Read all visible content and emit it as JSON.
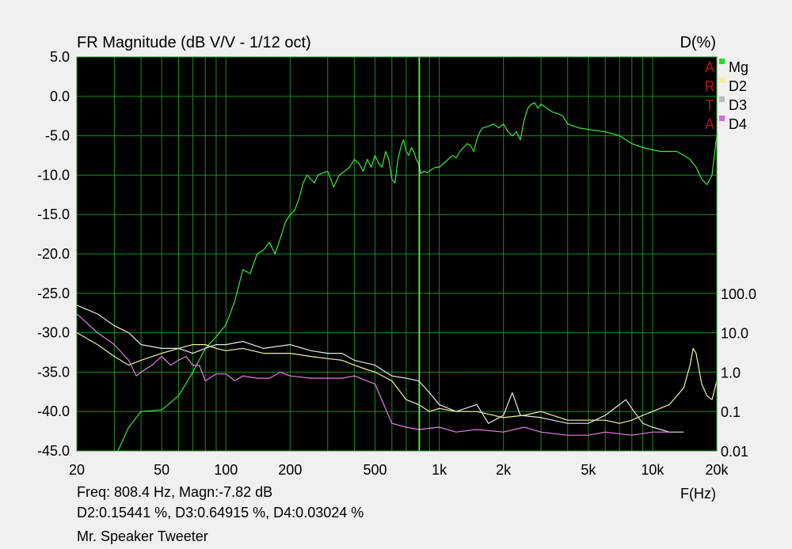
{
  "chart_data": {
    "type": "line",
    "title": "FR Magnitude (dB V/V - 1/12 oct)",
    "right_axis_label": "D(%)",
    "xlabel": "F(Hz)",
    "x_scale": "log",
    "xlim": [
      20,
      20000
    ],
    "x_ticks": [
      {
        "v": 20,
        "label": "20"
      },
      {
        "v": 50,
        "label": "50"
      },
      {
        "v": 100,
        "label": "100"
      },
      {
        "v": 200,
        "label": "200"
      },
      {
        "v": 500,
        "label": "500"
      },
      {
        "v": 1000,
        "label": "1k"
      },
      {
        "v": 2000,
        "label": "2k"
      },
      {
        "v": 5000,
        "label": "5k"
      },
      {
        "v": 10000,
        "label": "10k"
      },
      {
        "v": 20000,
        "label": "20k"
      }
    ],
    "ylim": [
      -45,
      5
    ],
    "y_ticks": [
      {
        "v": 5,
        "label": "5.0"
      },
      {
        "v": 0,
        "label": "0.0"
      },
      {
        "v": -5,
        "label": "-5.0"
      },
      {
        "v": -10,
        "label": "-10.0"
      },
      {
        "v": -15,
        "label": "-15.0"
      },
      {
        "v": -20,
        "label": "-20.0"
      },
      {
        "v": -25,
        "label": "-25.0"
      },
      {
        "v": -30,
        "label": "-30.0"
      },
      {
        "v": -35,
        "label": "-35.0"
      },
      {
        "v": -40,
        "label": "-40.0"
      },
      {
        "v": -45,
        "label": "-45.0"
      }
    ],
    "y2_scale": "log",
    "y2lim": [
      0.01,
      100
    ],
    "y2_ticks": [
      {
        "v": 100,
        "label": "100.0"
      },
      {
        "v": 10,
        "label": "10.0"
      },
      {
        "v": 1,
        "label": "1.0"
      },
      {
        "v": 0.1,
        "label": "0.1"
      },
      {
        "v": 0.01,
        "label": "0.01"
      }
    ],
    "grid": true,
    "background": "#000000",
    "grid_color": "#1f8a1f",
    "legend_position": "top-right",
    "legend_logo": "ARTA",
    "cursor_freq_hz": 808.4,
    "series": [
      {
        "name": "Mg",
        "axis": "left",
        "color": "#3ee83e",
        "points": [
          [
            20,
            -60
          ],
          [
            30,
            -46
          ],
          [
            35,
            -42
          ],
          [
            40,
            -40
          ],
          [
            50,
            -39.8
          ],
          [
            60,
            -38
          ],
          [
            70,
            -35
          ],
          [
            80,
            -32
          ],
          [
            90,
            -30.5
          ],
          [
            100,
            -29
          ],
          [
            110,
            -26
          ],
          [
            120,
            -22
          ],
          [
            130,
            -22.5
          ],
          [
            140,
            -20
          ],
          [
            150,
            -19.5
          ],
          [
            160,
            -18.5
          ],
          [
            170,
            -20
          ],
          [
            180,
            -18
          ],
          [
            190,
            -16
          ],
          [
            200,
            -15
          ],
          [
            210,
            -14.5
          ],
          [
            220,
            -13
          ],
          [
            230,
            -11
          ],
          [
            240,
            -10
          ],
          [
            250,
            -10.5
          ],
          [
            260,
            -11
          ],
          [
            270,
            -10
          ],
          [
            280,
            -9.8
          ],
          [
            300,
            -9.5
          ],
          [
            320,
            -11.5
          ],
          [
            340,
            -10
          ],
          [
            360,
            -9.5
          ],
          [
            380,
            -9
          ],
          [
            400,
            -8
          ],
          [
            420,
            -8.5
          ],
          [
            440,
            -9.5
          ],
          [
            460,
            -8
          ],
          [
            480,
            -9
          ],
          [
            500,
            -7.5
          ],
          [
            520,
            -8.5
          ],
          [
            540,
            -9
          ],
          [
            560,
            -7
          ],
          [
            580,
            -8
          ],
          [
            600,
            -10.5
          ],
          [
            620,
            -11
          ],
          [
            640,
            -8
          ],
          [
            660,
            -6.5
          ],
          [
            680,
            -5.5
          ],
          [
            700,
            -7
          ],
          [
            720,
            -7.5
          ],
          [
            740,
            -6.5
          ],
          [
            760,
            -7
          ],
          [
            780,
            -8
          ],
          [
            800,
            -8.5
          ],
          [
            820,
            -9.8
          ],
          [
            850,
            -9.5
          ],
          [
            880,
            -9.7
          ],
          [
            920,
            -9.3
          ],
          [
            960,
            -9
          ],
          [
            1000,
            -9
          ],
          [
            1050,
            -8.5
          ],
          [
            1100,
            -8
          ],
          [
            1150,
            -7.5
          ],
          [
            1200,
            -7.8
          ],
          [
            1250,
            -7
          ],
          [
            1300,
            -6.5
          ],
          [
            1350,
            -6
          ],
          [
            1400,
            -6.2
          ],
          [
            1450,
            -7
          ],
          [
            1500,
            -5.5
          ],
          [
            1550,
            -4.5
          ],
          [
            1600,
            -4
          ],
          [
            1700,
            -3.8
          ],
          [
            1800,
            -3.5
          ],
          [
            1900,
            -4
          ],
          [
            2000,
            -3.5
          ],
          [
            2100,
            -4.5
          ],
          [
            2200,
            -5
          ],
          [
            2300,
            -4.5
          ],
          [
            2400,
            -5.5
          ],
          [
            2500,
            -3
          ],
          [
            2600,
            -1.5
          ],
          [
            2700,
            -1
          ],
          [
            2800,
            -0.8
          ],
          [
            2900,
            -1.5
          ],
          [
            3000,
            -1
          ],
          [
            3200,
            -1.5
          ],
          [
            3400,
            -2
          ],
          [
            3600,
            -2.2
          ],
          [
            3800,
            -2.5
          ],
          [
            4000,
            -3.5
          ],
          [
            4500,
            -4
          ],
          [
            5000,
            -4.2
          ],
          [
            6000,
            -4.5
          ],
          [
            7000,
            -5
          ],
          [
            8000,
            -6
          ],
          [
            9000,
            -6.5
          ],
          [
            10000,
            -6.8
          ],
          [
            11000,
            -7
          ],
          [
            12000,
            -7
          ],
          [
            13000,
            -7
          ],
          [
            14000,
            -7.5
          ],
          [
            15000,
            -8
          ],
          [
            16000,
            -9
          ],
          [
            17000,
            -10.5
          ],
          [
            18000,
            -11.2
          ],
          [
            19000,
            -10
          ],
          [
            20000,
            -5
          ]
        ]
      },
      {
        "name": "D2",
        "axis": "right",
        "color": "#f2f2a6",
        "points": [
          [
            20,
            10
          ],
          [
            25,
            5
          ],
          [
            30,
            2.5
          ],
          [
            35,
            1.5
          ],
          [
            40,
            2
          ],
          [
            50,
            3
          ],
          [
            60,
            4
          ],
          [
            70,
            5
          ],
          [
            80,
            5
          ],
          [
            90,
            4
          ],
          [
            100,
            3.5
          ],
          [
            120,
            4
          ],
          [
            150,
            3
          ],
          [
            200,
            3
          ],
          [
            250,
            2.5
          ],
          [
            300,
            2.2
          ],
          [
            350,
            2
          ],
          [
            400,
            1.5
          ],
          [
            450,
            1.2
          ],
          [
            500,
            1
          ],
          [
            600,
            0.6
          ],
          [
            700,
            0.2
          ],
          [
            800,
            0.15
          ],
          [
            900,
            0.1
          ],
          [
            1000,
            0.12
          ],
          [
            1200,
            0.1
          ],
          [
            1500,
            0.1
          ],
          [
            2000,
            0.07
          ],
          [
            2500,
            0.08
          ],
          [
            3000,
            0.1
          ],
          [
            4000,
            0.06
          ],
          [
            5000,
            0.06
          ],
          [
            6000,
            0.06
          ],
          [
            7000,
            0.05
          ],
          [
            8000,
            0.06
          ],
          [
            9000,
            0.08
          ],
          [
            10000,
            0.1
          ],
          [
            12000,
            0.15
          ],
          [
            14000,
            0.4
          ],
          [
            15000,
            1.5
          ],
          [
            15500,
            4
          ],
          [
            16000,
            3
          ],
          [
            17000,
            0.5
          ],
          [
            18000,
            0.25
          ],
          [
            19000,
            0.2
          ],
          [
            20000,
            0.6
          ]
        ]
      },
      {
        "name": "D3",
        "axis": "right",
        "color": "#e8e8e8",
        "points": [
          [
            20,
            50
          ],
          [
            25,
            30
          ],
          [
            30,
            15
          ],
          [
            35,
            10
          ],
          [
            40,
            5
          ],
          [
            50,
            4
          ],
          [
            60,
            4
          ],
          [
            70,
            3
          ],
          [
            80,
            4
          ],
          [
            90,
            5
          ],
          [
            100,
            5
          ],
          [
            120,
            6
          ],
          [
            150,
            4
          ],
          [
            200,
            5
          ],
          [
            250,
            3.5
          ],
          [
            300,
            3
          ],
          [
            350,
            3
          ],
          [
            400,
            2
          ],
          [
            500,
            1.5
          ],
          [
            600,
            0.8
          ],
          [
            700,
            0.7
          ],
          [
            800,
            0.6
          ],
          [
            900,
            0.3
          ],
          [
            1000,
            0.15
          ],
          [
            1200,
            0.1
          ],
          [
            1500,
            0.15
          ],
          [
            1700,
            0.05
          ],
          [
            2000,
            0.08
          ],
          [
            2200,
            0.3
          ],
          [
            2400,
            0.08
          ],
          [
            3000,
            0.07
          ],
          [
            4000,
            0.05
          ],
          [
            5000,
            0.05
          ],
          [
            6000,
            0.08
          ],
          [
            7000,
            0.15
          ],
          [
            7500,
            0.2
          ],
          [
            8000,
            0.12
          ],
          [
            9000,
            0.05
          ],
          [
            10000,
            0.04
          ],
          [
            12000,
            0.03
          ],
          [
            14000,
            0.03
          ]
        ]
      },
      {
        "name": "D4",
        "axis": "right",
        "color": "#e87ee8",
        "points": [
          [
            20,
            30
          ],
          [
            25,
            10
          ],
          [
            30,
            5
          ],
          [
            35,
            2
          ],
          [
            38,
            0.8
          ],
          [
            40,
            1
          ],
          [
            45,
            1.5
          ],
          [
            50,
            2.5
          ],
          [
            55,
            1.5
          ],
          [
            60,
            2
          ],
          [
            65,
            2.5
          ],
          [
            70,
            1.5
          ],
          [
            75,
            1.5
          ],
          [
            80,
            0.6
          ],
          [
            90,
            0.9
          ],
          [
            100,
            0.9
          ],
          [
            110,
            0.6
          ],
          [
            120,
            0.8
          ],
          [
            140,
            0.7
          ],
          [
            160,
            0.7
          ],
          [
            180,
            1
          ],
          [
            200,
            0.8
          ],
          [
            250,
            0.7
          ],
          [
            300,
            0.7
          ],
          [
            350,
            0.7
          ],
          [
            400,
            0.8
          ],
          [
            500,
            0.5
          ],
          [
            600,
            0.05
          ],
          [
            700,
            0.04
          ],
          [
            800,
            0.035
          ],
          [
            1000,
            0.04
          ],
          [
            1200,
            0.03
          ],
          [
            1500,
            0.035
          ],
          [
            2000,
            0.03
          ],
          [
            2500,
            0.04
          ],
          [
            3000,
            0.03
          ],
          [
            4000,
            0.025
          ],
          [
            5000,
            0.025
          ],
          [
            6000,
            0.03
          ],
          [
            8000,
            0.025
          ],
          [
            10000,
            0.03
          ],
          [
            12000,
            0.03
          ]
        ]
      }
    ]
  },
  "readout": {
    "line1": "Freq: 808.4 Hz, Magn:-7.82 dB",
    "line2": "D2:0.15441 %, D3:0.64915 %, D4:0.03024 %",
    "line3": "Mr. Speaker Tweeter"
  },
  "legend_swatches": {
    "Mg": "#22dd22",
    "D2": "#f0f090",
    "D3": "#bbbbbb",
    "D4": "#dd66dd"
  },
  "logo_color": "#b01818"
}
